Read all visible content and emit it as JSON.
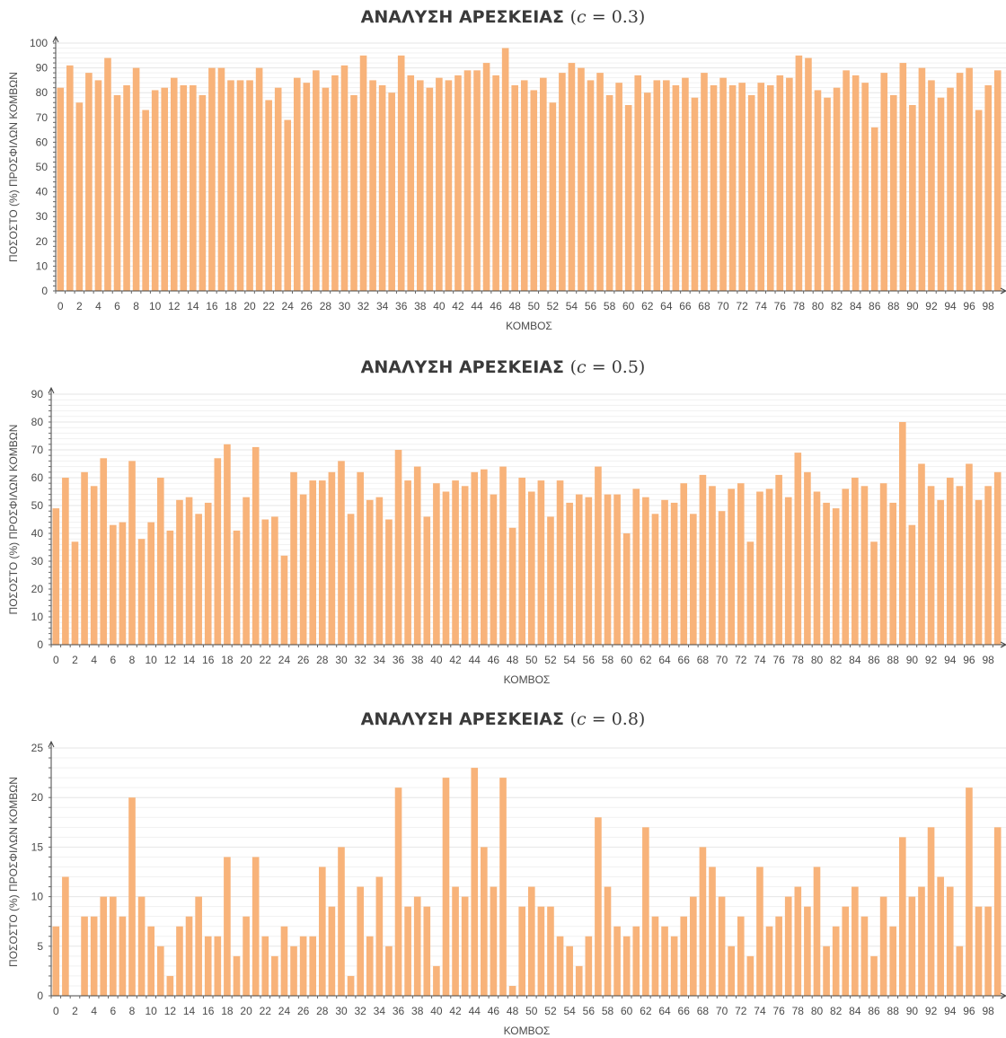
{
  "chart_data": [
    {
      "type": "bar",
      "title": "ΑΝΑΛΥΣΗ ΑΡΕΣΚΕΙΑΣ",
      "title_param": {
        "symbol": "c",
        "value": "0.3"
      },
      "xlabel": "ΚΟΜΒΟΣ",
      "ylabel": "ΠΟΣΟΣΤΟ  (%) ΠΡΟΣΦΙΛΩΝ ΚΟΜΒΩΝ",
      "ylim": [
        0,
        100
      ],
      "y_ticks": [
        0,
        10,
        20,
        30,
        40,
        50,
        60,
        70,
        80,
        90,
        100
      ],
      "x_tick_labels": [
        0,
        2,
        4,
        6,
        8,
        10,
        12,
        14,
        16,
        18,
        20,
        22,
        24,
        26,
        28,
        30,
        32,
        34,
        36,
        38,
        40,
        42,
        44,
        46,
        48,
        50,
        52,
        54,
        56,
        58,
        60,
        62,
        64,
        66,
        68,
        70,
        72,
        74,
        76,
        78,
        80,
        82,
        84,
        86,
        88,
        90,
        92,
        94,
        96,
        98
      ],
      "grid": true,
      "color": "#f8b37a",
      "categories": [
        0,
        1,
        2,
        3,
        4,
        5,
        6,
        7,
        8,
        9,
        10,
        11,
        12,
        13,
        14,
        15,
        16,
        17,
        18,
        19,
        20,
        21,
        22,
        23,
        24,
        25,
        26,
        27,
        28,
        29,
        30,
        31,
        32,
        33,
        34,
        35,
        36,
        37,
        38,
        39,
        40,
        41,
        42,
        43,
        44,
        45,
        46,
        47,
        48,
        49,
        50,
        51,
        52,
        53,
        54,
        55,
        56,
        57,
        58,
        59,
        60,
        61,
        62,
        63,
        64,
        65,
        66,
        67,
        68,
        69,
        70,
        71,
        72,
        73,
        74,
        75,
        76,
        77,
        78,
        79,
        80,
        81,
        82,
        83,
        84,
        85,
        86,
        87,
        88,
        89,
        90,
        91,
        92,
        93,
        94,
        95,
        96,
        97,
        98,
        99
      ],
      "values": [
        82,
        91,
        76,
        88,
        85,
        94,
        79,
        83,
        90,
        73,
        81,
        82,
        86,
        83,
        83,
        79,
        90,
        90,
        85,
        85,
        85,
        90,
        77,
        82,
        69,
        86,
        84,
        89,
        82,
        87,
        91,
        79,
        95,
        85,
        83,
        80,
        95,
        87,
        85,
        82,
        86,
        85,
        87,
        89,
        89,
        92,
        87,
        98,
        83,
        85,
        81,
        86,
        76,
        88,
        92,
        90,
        85,
        88,
        79,
        84,
        75,
        87,
        80,
        85,
        85,
        83,
        86,
        78,
        88,
        83,
        86,
        83,
        84,
        79,
        84,
        83,
        87,
        86,
        95,
        94,
        81,
        78,
        82,
        89,
        87,
        84,
        66,
        88,
        79,
        92,
        75,
        90,
        85,
        78,
        82,
        88,
        90,
        73,
        83,
        89
      ]
    },
    {
      "type": "bar",
      "title": "ΑΝΑΛΥΣΗ ΑΡΕΣΚΕΙΑΣ",
      "title_param": {
        "symbol": "c",
        "value": "0.5"
      },
      "xlabel": "ΚΟΜΒΟΣ",
      "ylabel": "ΠΟΣΟΣΤΟ  (%) ΠΡΟΣΦΙΛΩΝ ΚΟΜΒΩΝ",
      "ylim": [
        0,
        90
      ],
      "y_ticks": [
        0,
        10,
        20,
        30,
        40,
        50,
        60,
        70,
        80,
        90
      ],
      "x_tick_labels": [
        0,
        2,
        4,
        6,
        8,
        10,
        12,
        14,
        16,
        18,
        20,
        22,
        24,
        26,
        28,
        30,
        32,
        34,
        36,
        38,
        40,
        42,
        44,
        46,
        48,
        50,
        52,
        54,
        56,
        58,
        60,
        62,
        64,
        66,
        68,
        70,
        72,
        74,
        76,
        78,
        80,
        82,
        84,
        86,
        88,
        90,
        92,
        94,
        96,
        98
      ],
      "grid": true,
      "color": "#f8b37a",
      "categories": [
        0,
        1,
        2,
        3,
        4,
        5,
        6,
        7,
        8,
        9,
        10,
        11,
        12,
        13,
        14,
        15,
        16,
        17,
        18,
        19,
        20,
        21,
        22,
        23,
        24,
        25,
        26,
        27,
        28,
        29,
        30,
        31,
        32,
        33,
        34,
        35,
        36,
        37,
        38,
        39,
        40,
        41,
        42,
        43,
        44,
        45,
        46,
        47,
        48,
        49,
        50,
        51,
        52,
        53,
        54,
        55,
        56,
        57,
        58,
        59,
        60,
        61,
        62,
        63,
        64,
        65,
        66,
        67,
        68,
        69,
        70,
        71,
        72,
        73,
        74,
        75,
        76,
        77,
        78,
        79,
        80,
        81,
        82,
        83,
        84,
        85,
        86,
        87,
        88,
        89,
        90,
        91,
        92,
        93,
        94,
        95,
        96,
        97,
        98,
        99
      ],
      "values": [
        49,
        60,
        37,
        62,
        57,
        67,
        43,
        44,
        66,
        38,
        44,
        60,
        41,
        52,
        53,
        47,
        51,
        67,
        72,
        41,
        53,
        71,
        45,
        46,
        32,
        62,
        54,
        59,
        59,
        62,
        66,
        47,
        62,
        52,
        53,
        45,
        70,
        59,
        64,
        46,
        58,
        55,
        59,
        57,
        62,
        63,
        54,
        64,
        42,
        60,
        55,
        59,
        46,
        59,
        51,
        54,
        53,
        64,
        54,
        54,
        40,
        56,
        53,
        47,
        52,
        51,
        58,
        47,
        61,
        57,
        48,
        56,
        58,
        37,
        55,
        56,
        61,
        53,
        69,
        62,
        55,
        51,
        49,
        56,
        60,
        57,
        37,
        58,
        51,
        80,
        43,
        65,
        57,
        52,
        60,
        57,
        65,
        52,
        57,
        62
      ]
    },
    {
      "type": "bar",
      "title": "ΑΝΑΛΥΣΗ ΑΡΕΣΚΕΙΑΣ",
      "title_param": {
        "symbol": "c",
        "value": "0.8"
      },
      "xlabel": "ΚΟΜΒΟΣ",
      "ylabel": "ΠΟΣΟΣΤΟ  (%) ΠΡΟΣΦΙΛΩΝ ΚΟΜΒΩΝ",
      "ylim": [
        0,
        25
      ],
      "y_ticks": [
        0,
        5,
        10,
        15,
        20,
        25
      ],
      "x_tick_labels": [
        0,
        2,
        4,
        6,
        8,
        10,
        12,
        14,
        16,
        18,
        20,
        22,
        24,
        26,
        28,
        30,
        32,
        34,
        36,
        38,
        40,
        42,
        44,
        46,
        48,
        50,
        52,
        54,
        56,
        58,
        60,
        62,
        64,
        66,
        68,
        70,
        72,
        74,
        76,
        78,
        80,
        82,
        84,
        86,
        88,
        90,
        92,
        94,
        96,
        98
      ],
      "grid": true,
      "color": "#f8b37a",
      "categories": [
        0,
        1,
        2,
        3,
        4,
        5,
        6,
        7,
        8,
        9,
        10,
        11,
        12,
        13,
        14,
        15,
        16,
        17,
        18,
        19,
        20,
        21,
        22,
        23,
        24,
        25,
        26,
        27,
        28,
        29,
        30,
        31,
        32,
        33,
        34,
        35,
        36,
        37,
        38,
        39,
        40,
        41,
        42,
        43,
        44,
        45,
        46,
        47,
        48,
        49,
        50,
        51,
        52,
        53,
        54,
        55,
        56,
        57,
        58,
        59,
        60,
        61,
        62,
        63,
        64,
        65,
        66,
        67,
        68,
        69,
        70,
        71,
        72,
        73,
        74,
        75,
        76,
        77,
        78,
        79,
        80,
        81,
        82,
        83,
        84,
        85,
        86,
        87,
        88,
        89,
        90,
        91,
        92,
        93,
        94,
        95,
        96,
        97,
        98,
        99
      ],
      "values": [
        7,
        12,
        0,
        8,
        8,
        10,
        10,
        8,
        20,
        10,
        7,
        5,
        2,
        7,
        8,
        10,
        6,
        6,
        14,
        4,
        8,
        14,
        6,
        4,
        7,
        5,
        6,
        6,
        13,
        9,
        15,
        2,
        11,
        6,
        12,
        5,
        21,
        9,
        10,
        9,
        3,
        22,
        11,
        10,
        23,
        15,
        11,
        22,
        1,
        9,
        11,
        9,
        9,
        6,
        5,
        3,
        6,
        18,
        11,
        7,
        6,
        7,
        17,
        8,
        7,
        6,
        8,
        10,
        15,
        13,
        10,
        5,
        8,
        4,
        13,
        7,
        8,
        10,
        11,
        9,
        13,
        5,
        7,
        9,
        11,
        8,
        4,
        10,
        7,
        16,
        10,
        11,
        17,
        12,
        11,
        5,
        21,
        9,
        9,
        17
      ]
    }
  ]
}
